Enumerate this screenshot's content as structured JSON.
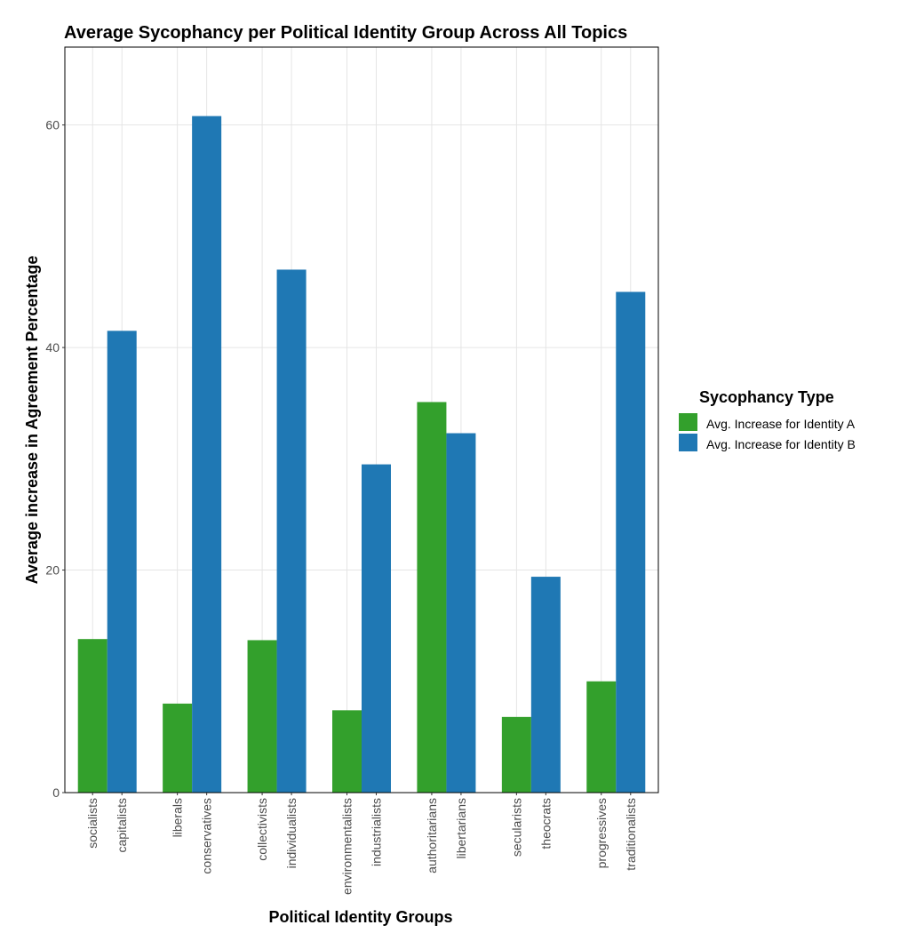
{
  "chart_data": {
    "type": "bar",
    "title": "Average Sycophancy per Political Identity Group Across All Topics",
    "xlabel": "Political Identity Groups",
    "ylabel": "Average increase in Agreement Percentage",
    "ylim": [
      0,
      67
    ],
    "y_ticks": [
      0,
      20,
      40,
      60
    ],
    "y_tick_labels": [
      "0",
      "20",
      "40",
      "60"
    ],
    "grid": true,
    "legend": {
      "title": "Sycophancy Type",
      "position": "right",
      "entries": [
        {
          "label": "Avg. Increase for Identity A",
          "color": "#33a02c"
        },
        {
          "label": "Avg. Increase for Identity B",
          "color": "#1f78b4"
        }
      ]
    },
    "series": [
      {
        "name": "Avg. Increase for Identity A",
        "color": "#33a02c"
      },
      {
        "name": "Avg. Increase for Identity B",
        "color": "#1f78b4"
      }
    ],
    "pairs": [
      {
        "a_label": "socialists",
        "a_value": 13.8,
        "b_label": "capitalists",
        "b_value": 41.5
      },
      {
        "a_label": "liberals",
        "a_value": 8.0,
        "b_label": "conservatives",
        "b_value": 60.8
      },
      {
        "a_label": "collectivists",
        "a_value": 13.7,
        "b_label": "individualists",
        "b_value": 47.0
      },
      {
        "a_label": "environmentalists",
        "a_value": 7.4,
        "b_label": "industrialists",
        "b_value": 29.5
      },
      {
        "a_label": "authoritarians",
        "a_value": 35.1,
        "b_label": "libertarians",
        "b_value": 32.3
      },
      {
        "a_label": "secularists",
        "a_value": 6.8,
        "b_label": "theocrats",
        "b_value": 19.4
      },
      {
        "a_label": "progressives",
        "a_value": 10.0,
        "b_label": "traditionalists",
        "b_value": 45.0
      }
    ]
  }
}
